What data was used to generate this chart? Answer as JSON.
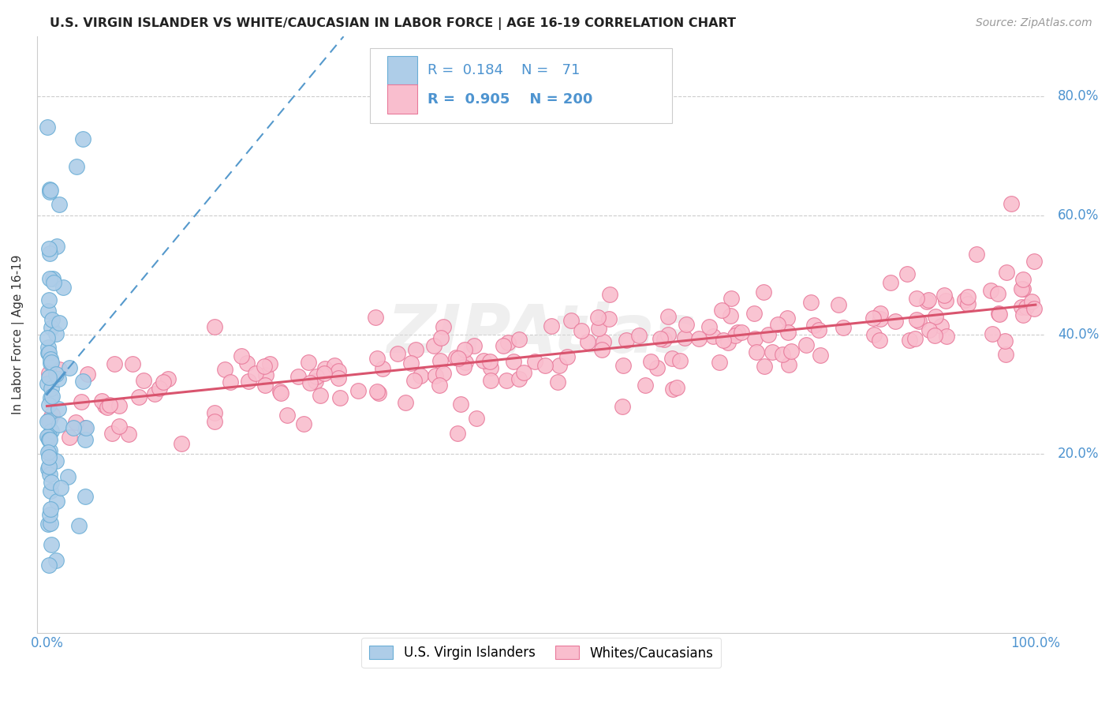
{
  "title": "U.S. VIRGIN ISLANDER VS WHITE/CAUCASIAN IN LABOR FORCE | AGE 16-19 CORRELATION CHART",
  "source_text": "Source: ZipAtlas.com",
  "ylabel": "In Labor Force | Age 16-19",
  "xlim": [
    -0.01,
    1.01
  ],
  "ylim": [
    -0.1,
    0.9
  ],
  "ytick_positions": [
    0.2,
    0.4,
    0.6,
    0.8
  ],
  "ytick_labels": [
    "20.0%",
    "40.0%",
    "60.0%",
    "80.0%"
  ],
  "xtick_positions": [
    0.0,
    0.2,
    0.4,
    0.6,
    0.8,
    1.0
  ],
  "xticklabels_first": "0.0%",
  "xticklabels_last": "100.0%",
  "blue_R": 0.184,
  "blue_N": 71,
  "pink_R": 0.905,
  "pink_N": 200,
  "blue_face_color": "#aecde8",
  "blue_edge_color": "#6aaed6",
  "pink_face_color": "#f9bece",
  "pink_edge_color": "#e8799a",
  "blue_line_color": "#5599cc",
  "pink_line_color": "#d9546e",
  "watermark": "ZIPAtlas",
  "background_color": "#ffffff",
  "grid_color": "#cccccc",
  "title_fontsize": 11.5,
  "tick_label_color": "#4e94d0",
  "ylabel_color": "#333333",
  "source_color": "#999999"
}
